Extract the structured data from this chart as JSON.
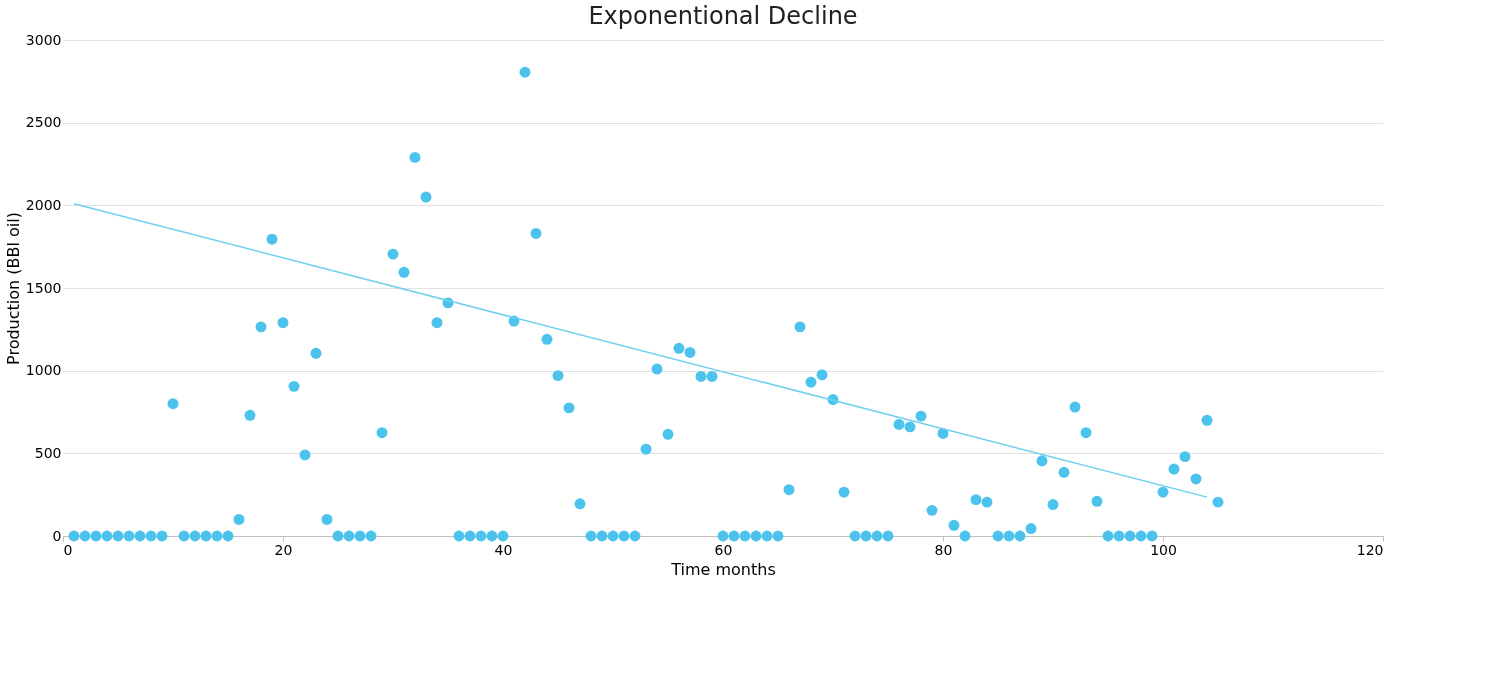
{
  "chart_data": {
    "type": "scatter",
    "title": "Exponentional Decline",
    "xlabel": "Time months",
    "ylabel": "Production (BBl oil)",
    "xlim": [
      0,
      120
    ],
    "xticks": [
      0,
      20,
      40,
      60,
      80,
      100,
      120
    ],
    "ylim": [
      0,
      3000
    ],
    "yticks": [
      0,
      500,
      1000,
      1500,
      2000,
      2500,
      3000
    ],
    "grid": "y",
    "series": [
      {
        "color": "#4cc3ec",
        "marker": "circle",
        "x": [
          1,
          2,
          3,
          4,
          5,
          6,
          7,
          8,
          9,
          10,
          11,
          12,
          13,
          14,
          15,
          16,
          17,
          18,
          19,
          20,
          21,
          22,
          23,
          24,
          25,
          26,
          27,
          28,
          29,
          30,
          31,
          32,
          33,
          34,
          35,
          36,
          37,
          38,
          39,
          40,
          41,
          42,
          43,
          44,
          45,
          46,
          47,
          48,
          49,
          50,
          51,
          52,
          53,
          54,
          55,
          56,
          57,
          58,
          59,
          60,
          61,
          62,
          63,
          64,
          65,
          66,
          67,
          68,
          69,
          70,
          71,
          72,
          73,
          74,
          75,
          76,
          77,
          78,
          79,
          80,
          81,
          82,
          83,
          84,
          85,
          86,
          87,
          88,
          89,
          90,
          91,
          92,
          93,
          94,
          95,
          96,
          97,
          98,
          99,
          100,
          101,
          102,
          103,
          104,
          105
        ],
        "values": [
          0,
          0,
          0,
          0,
          0,
          0,
          0,
          0,
          0,
          800,
          0,
          0,
          0,
          0,
          0,
          100,
          730,
          1265,
          1795,
          1290,
          905,
          490,
          1105,
          100,
          0,
          0,
          0,
          0,
          625,
          1705,
          1595,
          2290,
          2050,
          1290,
          1410,
          0,
          0,
          0,
          0,
          0,
          1300,
          2805,
          1830,
          1190,
          970,
          775,
          195,
          0,
          0,
          0,
          0,
          0,
          525,
          1010,
          615,
          1135,
          1110,
          965,
          965,
          0,
          0,
          0,
          0,
          0,
          0,
          280,
          1265,
          930,
          975,
          825,
          265,
          0,
          0,
          0,
          0,
          675,
          660,
          725,
          155,
          620,
          65,
          0,
          220,
          205,
          0,
          0,
          0,
          45,
          455,
          190,
          385,
          780,
          625,
          210,
          0,
          0,
          0,
          0,
          0,
          265,
          405,
          480,
          345,
          700,
          205
        ]
      },
      {
        "type": "line",
        "marker": "none",
        "color": "#6fd0f0",
        "x": [
          1,
          104
        ],
        "values": [
          2010,
          235
        ]
      }
    ]
  }
}
